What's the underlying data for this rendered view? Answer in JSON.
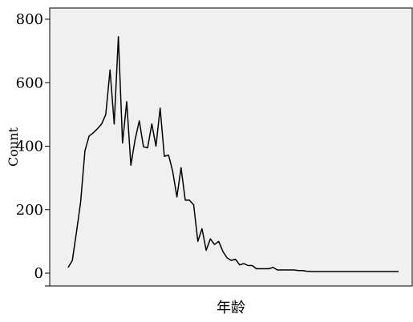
{
  "chart_data": {
    "type": "line",
    "xlabel": "年龄",
    "ylabel": "Count",
    "ylim": [
      0,
      800
    ],
    "yticks": [
      0,
      200,
      400,
      600,
      800
    ],
    "grid": false,
    "legend": "none",
    "colors": {
      "plot_background": "#f0f0f0",
      "line": "#000000"
    },
    "x": [
      1,
      2,
      3,
      4,
      5,
      6,
      7,
      8,
      9,
      10,
      11,
      12,
      13,
      14,
      15,
      16,
      17,
      18,
      19,
      20,
      21,
      22,
      23,
      24,
      25,
      26,
      27,
      28,
      29,
      30,
      31,
      32,
      33,
      34,
      35,
      36,
      37,
      38,
      39,
      40,
      41,
      42,
      43,
      44,
      45,
      46,
      47,
      48,
      49,
      50,
      51,
      52,
      53,
      54,
      55,
      56,
      57,
      58,
      59,
      60,
      61,
      62,
      63,
      64,
      65,
      66,
      67,
      68,
      69,
      70,
      71,
      72,
      73,
      74,
      75,
      76,
      77,
      78,
      79,
      80
    ],
    "values": [
      18,
      40,
      130,
      225,
      385,
      432,
      442,
      455,
      470,
      500,
      640,
      470,
      745,
      410,
      540,
      340,
      420,
      480,
      398,
      395,
      470,
      400,
      520,
      368,
      372,
      320,
      240,
      332,
      230,
      230,
      215,
      100,
      140,
      72,
      108,
      90,
      100,
      68,
      48,
      40,
      44,
      26,
      30,
      24,
      24,
      14,
      14,
      14,
      14,
      18,
      10,
      10,
      10,
      10,
      10,
      8,
      8,
      6,
      5,
      5,
      5,
      5,
      5,
      5,
      5,
      5,
      5,
      5,
      5,
      5,
      5,
      5,
      5,
      5,
      5,
      5,
      5,
      5,
      5,
      5
    ]
  }
}
